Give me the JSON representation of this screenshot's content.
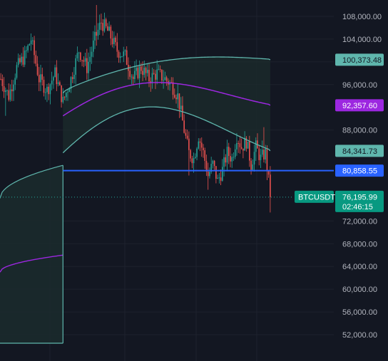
{
  "chart_data": {
    "type": "candlestick",
    "symbol": "BTCUSDT",
    "countdown": "02:46:15",
    "y_range": [
      49500,
      110500
    ],
    "y_ticks": [
      108000,
      104000,
      100000,
      96000,
      88000,
      72000,
      68000,
      64000,
      60000,
      56000,
      52000
    ],
    "y_tick_labels": [
      "108,000.00",
      "104,000.00",
      "100,000.00",
      "96,000.00",
      "88,000.00",
      "72,000.00",
      "68,000.00",
      "64,000.00",
      "60,000.00",
      "56,000.00",
      "52,000.00"
    ],
    "price_tags": [
      {
        "value": 100373.48,
        "label": "100,373.48",
        "color": "#5fb6ad",
        "text_color": "#131722"
      },
      {
        "value": 92357.6,
        "label": "92,357.60",
        "color": "#9c27e0",
        "text_color": "#ffffff"
      },
      {
        "value": 84341.73,
        "label": "84,341.73",
        "color": "#5fb6ad",
        "text_color": "#131722"
      },
      {
        "value": 80858.55,
        "label": "80,858.55",
        "color": "#2962ff",
        "text_color": "#ffffff"
      },
      {
        "value": 76195.99,
        "label": "76,195.99",
        "color": "#089981",
        "text_color": "#ffffff"
      }
    ],
    "last_price": 76195.99,
    "horizontal_level": 80858.55,
    "colors": {
      "up": "#26a69a",
      "down": "#ef5350",
      "band": "#5fb6ad",
      "midline": "#9c27e0",
      "level": "#2962ff",
      "band_fill": "#1b2a2c"
    },
    "anchor_index": 39,
    "old_band": {
      "upper": [
        76000,
        81800
      ],
      "mid": [
        63000,
        66000
      ],
      "lower": [
        50500,
        50500
      ]
    },
    "new_band": {
      "upper": [
        97500,
        100373.48
      ],
      "mid": [
        90500,
        92357.6
      ],
      "lower": [
        84000,
        84341.73
      ]
    },
    "candle_key_points": [
      [
        0,
        97000
      ],
      [
        5,
        94000
      ],
      [
        10,
        99000
      ],
      [
        15,
        101000
      ],
      [
        19,
        104000
      ],
      [
        24,
        97000
      ],
      [
        29,
        95000
      ],
      [
        34,
        98000
      ],
      [
        39,
        93000
      ],
      [
        44,
        97000
      ],
      [
        49,
        102000
      ],
      [
        54,
        99000
      ],
      [
        59,
        104000
      ],
      [
        63,
        107000
      ],
      [
        68,
        105000
      ],
      [
        73,
        102000
      ],
      [
        78,
        101000
      ],
      [
        83,
        97000
      ],
      [
        88,
        99000
      ],
      [
        93,
        97000
      ],
      [
        98,
        98000
      ],
      [
        103,
        97000
      ],
      [
        107,
        96000
      ],
      [
        111,
        94000
      ],
      [
        115,
        88000
      ],
      [
        118,
        84000
      ],
      [
        121,
        83000
      ],
      [
        124,
        87000
      ],
      [
        127,
        84000
      ],
      [
        130,
        80000
      ],
      [
        133,
        82000
      ],
      [
        136,
        79000
      ],
      [
        139,
        81000
      ],
      [
        142,
        84000
      ],
      [
        145,
        83000
      ],
      [
        148,
        87000
      ],
      [
        151,
        85000
      ],
      [
        154,
        86000
      ],
      [
        157,
        82000
      ],
      [
        160,
        85000
      ],
      [
        163,
        83000
      ],
      [
        166,
        84000
      ],
      [
        168,
        79000
      ],
      [
        169,
        76195.99
      ]
    ]
  }
}
